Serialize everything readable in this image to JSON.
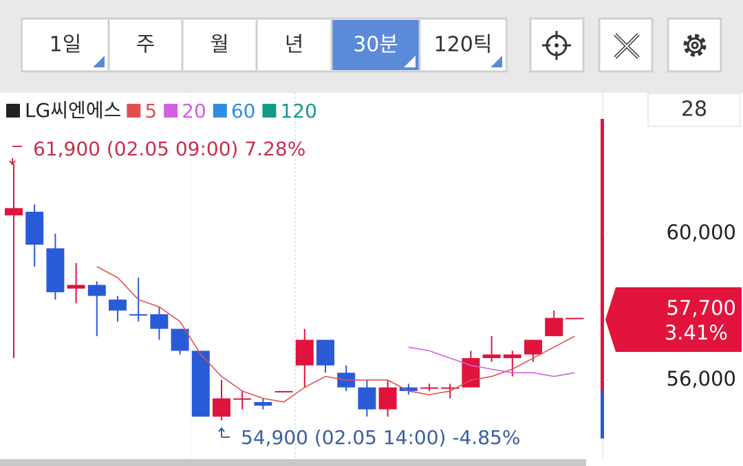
{
  "toolbar": {
    "buttons": [
      "1일",
      "주",
      "월",
      "년",
      "30분",
      "120틱"
    ],
    "active": 4
  },
  "count_box": "28",
  "chart_data": {
    "type": "candlestick",
    "title": "LG씨엔에스",
    "title_color": "#222222",
    "up_color": "#e0143c",
    "down_color": "#2a5bd7",
    "open": [
      60500,
      60600,
      59600,
      58500,
      58600,
      58200,
      57800,
      57800,
      57400,
      56800,
      55000,
      55500,
      55400,
      55700,
      56400,
      57100,
      56200,
      55800,
      55200,
      55800,
      55800,
      55800,
      55800,
      56600,
      56600,
      56700,
      57200,
      57700
    ],
    "high": [
      61900,
      60800,
      60000,
      59200,
      58700,
      58300,
      58800,
      58000,
      57400,
      56800,
      56000,
      55700,
      55500,
      55700,
      57400,
      57100,
      56400,
      56000,
      56000,
      55900,
      55900,
      55900,
      56800,
      57200,
      56800,
      57100,
      57900,
      57700
    ],
    "low": [
      56600,
      59100,
      58200,
      58100,
      57200,
      57600,
      57600,
      57100,
      56700,
      55000,
      54900,
      55200,
      55200,
      55700,
      55800,
      56200,
      55700,
      55000,
      55000,
      55600,
      55700,
      55500,
      55800,
      56500,
      56100,
      56500,
      57200,
      57700
    ],
    "close": [
      60700,
      59700,
      58400,
      58600,
      58300,
      57900,
      57800,
      57400,
      56800,
      55000,
      55500,
      55500,
      55300,
      55700,
      57100,
      56400,
      55800,
      55200,
      55800,
      55700,
      55800,
      55800,
      56600,
      56700,
      56700,
      57100,
      57700,
      57700
    ],
    "series": [
      {
        "name": "5",
        "color": "#e05050",
        "values": [
          null,
          null,
          null,
          null,
          59100,
          58800,
          58200,
          58000,
          57600,
          56700,
          56100,
          55700,
          55500,
          55400,
          55800,
          56100,
          56000,
          56000,
          56000,
          55700,
          55600,
          55700,
          56000,
          56100,
          56300,
          56600,
          56900,
          57200
        ]
      },
      {
        "name": "20",
        "color": "#d060e0",
        "values": [
          null,
          null,
          null,
          null,
          null,
          null,
          null,
          null,
          null,
          null,
          null,
          null,
          null,
          null,
          null,
          null,
          null,
          null,
          null,
          56900,
          56800,
          56600,
          56400,
          56300,
          56200,
          56200,
          56100,
          56200
        ]
      },
      {
        "name": "60",
        "color": "#2f8ee0",
        "values": []
      },
      {
        "name": "120",
        "color": "#149a88",
        "values": []
      }
    ],
    "ylim": [
      53840,
      63850
    ],
    "yticks": [
      {
        "value": 60000,
        "label": "60,000"
      },
      {
        "value": 56000,
        "label": "56,000"
      }
    ],
    "high_label": "61,900 (02.05 09:00) 7.28%",
    "low_label": "54,900 (02.05 14:00) -4.85%",
    "current_price": {
      "value": 57700,
      "label": "57,700"
    },
    "current_change": {
      "value": 3.41,
      "label": "3.41%"
    }
  }
}
